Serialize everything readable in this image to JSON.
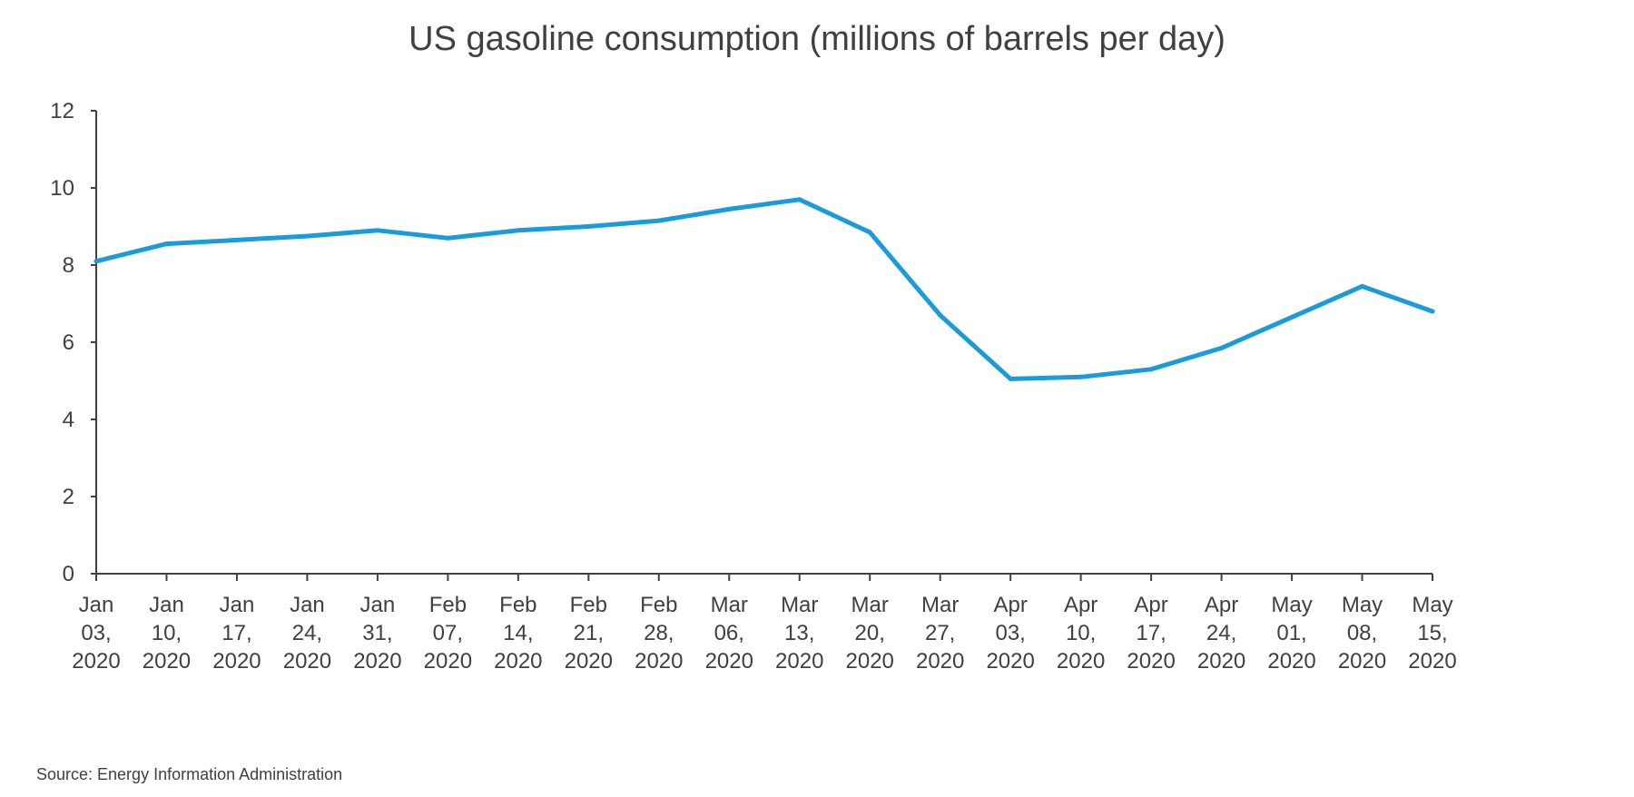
{
  "chart_data": {
    "type": "line",
    "title": "US gasoline consumption (millions of barrels per day)",
    "xlabel": "",
    "ylabel": "",
    "categories": [
      [
        "Jan",
        "03,",
        "2020"
      ],
      [
        "Jan",
        "10,",
        "2020"
      ],
      [
        "Jan",
        "17,",
        "2020"
      ],
      [
        "Jan",
        "24,",
        "2020"
      ],
      [
        "Jan",
        "31,",
        "2020"
      ],
      [
        "Feb",
        "07,",
        "2020"
      ],
      [
        "Feb",
        "14,",
        "2020"
      ],
      [
        "Feb",
        "21,",
        "2020"
      ],
      [
        "Feb",
        "28,",
        "2020"
      ],
      [
        "Mar",
        "06,",
        "2020"
      ],
      [
        "Mar",
        "13,",
        "2020"
      ],
      [
        "Mar",
        "20,",
        "2020"
      ],
      [
        "Mar",
        "27,",
        "2020"
      ],
      [
        "Apr",
        "03,",
        "2020"
      ],
      [
        "Apr",
        "10,",
        "2020"
      ],
      [
        "Apr",
        "17,",
        "2020"
      ],
      [
        "Apr",
        "24,",
        "2020"
      ],
      [
        "May",
        "01,",
        "2020"
      ],
      [
        "May",
        "08,",
        "2020"
      ],
      [
        "May",
        "15,",
        "2020"
      ]
    ],
    "series": [
      {
        "values": [
          8.1,
          8.55,
          8.65,
          8.75,
          8.9,
          8.7,
          8.9,
          9.0,
          9.15,
          9.45,
          9.7,
          8.85,
          6.7,
          5.05,
          5.1,
          5.3,
          5.85,
          6.65,
          7.45,
          6.8
        ]
      }
    ],
    "y_ticks": [
      0,
      2,
      4,
      6,
      8,
      10,
      12
    ],
    "ylim": [
      0,
      12
    ],
    "grid": false,
    "legend": "none",
    "line_color": "#1a9cd8",
    "axis_color": "#404040"
  },
  "source": "Source: Energy Information Administration"
}
